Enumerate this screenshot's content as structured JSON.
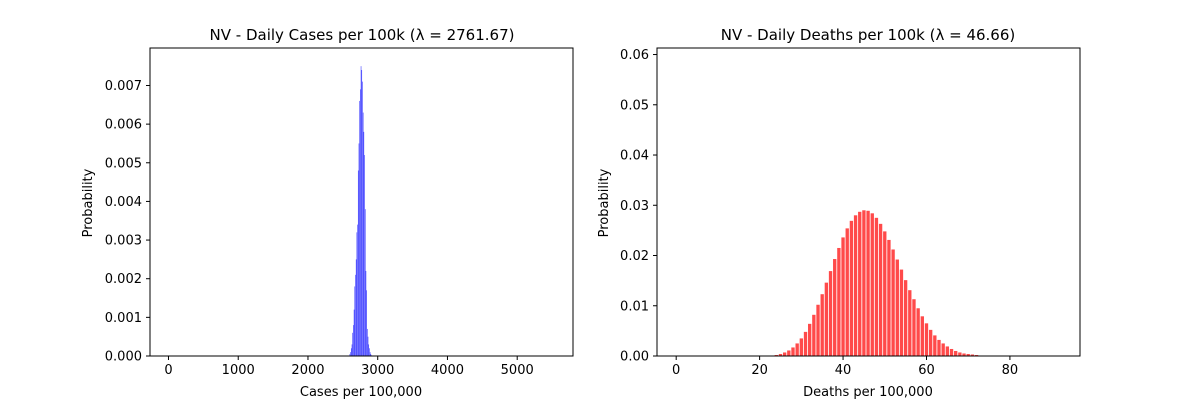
{
  "chart_data": [
    {
      "type": "bar",
      "title": "NV - Daily Cases per 100k (λ = 2761.67)",
      "xlabel": "Cases per 100,000",
      "ylabel": "Probability",
      "xlim": [
        -265,
        5800
      ],
      "ylim": [
        0,
        0.00797
      ],
      "xticks": [
        0,
        1000,
        2000,
        3000,
        4000,
        5000
      ],
      "xtick_labels": [
        "0",
        "1000",
        "2000",
        "3000",
        "4000",
        "5000"
      ],
      "yticks": [
        0,
        0.001,
        0.002,
        0.003,
        0.004,
        0.005,
        0.006,
        0.007
      ],
      "ytick_labels": [
        "0.000",
        "0.001",
        "0.002",
        "0.003",
        "0.004",
        "0.005",
        "0.006",
        "0.007"
      ],
      "grid": false,
      "color": "#0000ff",
      "x": [
        2600,
        2610,
        2620,
        2630,
        2640,
        2650,
        2660,
        2670,
        2680,
        2690,
        2700,
        2710,
        2720,
        2730,
        2740,
        2750,
        2760,
        2770,
        2780,
        2790,
        2800,
        2810,
        2820,
        2830,
        2840,
        2850,
        2860,
        2870,
        2880,
        2890,
        2900,
        2910,
        2920
      ],
      "values": [
        5e-05,
        0.0001,
        0.0002,
        0.0003,
        0.0006,
        0.0008,
        0.0012,
        0.0018,
        0.0021,
        0.0025,
        0.0032,
        0.0034,
        0.0048,
        0.0055,
        0.0066,
        0.0069,
        0.0075,
        0.0074,
        0.0071,
        0.0063,
        0.0058,
        0.0052,
        0.0038,
        0.0022,
        0.0017,
        0.0007,
        0.0005,
        0.0003,
        0.0002,
        0.0001,
        5e-05,
        2e-05,
        1e-05
      ]
    },
    {
      "type": "bar",
      "title": "NV - Daily Deaths per 100k (λ = 46.66)",
      "xlabel": "Deaths per 100,000",
      "ylabel": "Probability",
      "xlim": [
        -4.6,
        96.8
      ],
      "ylim": [
        0,
        0.0613
      ],
      "xticks": [
        0,
        20,
        40,
        60,
        80
      ],
      "xtick_labels": [
        "0",
        "20",
        "40",
        "60",
        "80"
      ],
      "yticks": [
        0,
        0.01,
        0.02,
        0.03,
        0.04,
        0.05,
        0.06
      ],
      "ytick_labels": [
        "0.00",
        "0.01",
        "0.02",
        "0.03",
        "0.04",
        "0.05",
        "0.06"
      ],
      "grid": false,
      "color": "#ff4040",
      "x": [
        0,
        1,
        2,
        3,
        4,
        5,
        6,
        7,
        8,
        9,
        10,
        11,
        12,
        13,
        14,
        15,
        16,
        17,
        18,
        19,
        20,
        21,
        22,
        23,
        24,
        25,
        26,
        27,
        28,
        29,
        30,
        31,
        32,
        33,
        34,
        35,
        36,
        37,
        38,
        39,
        40,
        41,
        42,
        43,
        44,
        45,
        46,
        47,
        48,
        49,
        50,
        51,
        52,
        53,
        54,
        55,
        56,
        57,
        58,
        59,
        60,
        61,
        62,
        63,
        64,
        65,
        66,
        67,
        68,
        69,
        70,
        71,
        72,
        73,
        74,
        75,
        76,
        77,
        78,
        79,
        80,
        81,
        82,
        83,
        84,
        85,
        86,
        87,
        88,
        89,
        90,
        91,
        92
      ],
      "values": [
        0,
        0,
        0,
        0,
        0,
        0,
        0,
        0,
        0,
        0,
        0,
        0,
        0,
        0,
        0,
        0,
        0,
        0,
        0,
        0,
        0,
        0,
        0,
        0.0001,
        0.0002,
        0.0004,
        0.0007,
        0.0011,
        0.0017,
        0.0025,
        0.0035,
        0.0048,
        0.0064,
        0.0082,
        0.0102,
        0.0123,
        0.0146,
        0.0169,
        0.0193,
        0.0215,
        0.0236,
        0.0254,
        0.0269,
        0.028,
        0.0287,
        0.029,
        0.0289,
        0.0284,
        0.0275,
        0.0263,
        0.0248,
        0.0231,
        0.0212,
        0.0192,
        0.0172,
        0.0151,
        0.0131,
        0.0113,
        0.0095,
        0.0079,
        0.0065,
        0.0052,
        0.0041,
        0.0032,
        0.0025,
        0.0019,
        0.0014,
        0.001,
        0.0007,
        0.0005,
        0.0004,
        0.0003,
        0.0002,
        0.0001,
        0.0001,
        0,
        0,
        0,
        0,
        0,
        0,
        0,
        0,
        0,
        0,
        0,
        0,
        0,
        0,
        0,
        0,
        0,
        0
      ]
    }
  ]
}
